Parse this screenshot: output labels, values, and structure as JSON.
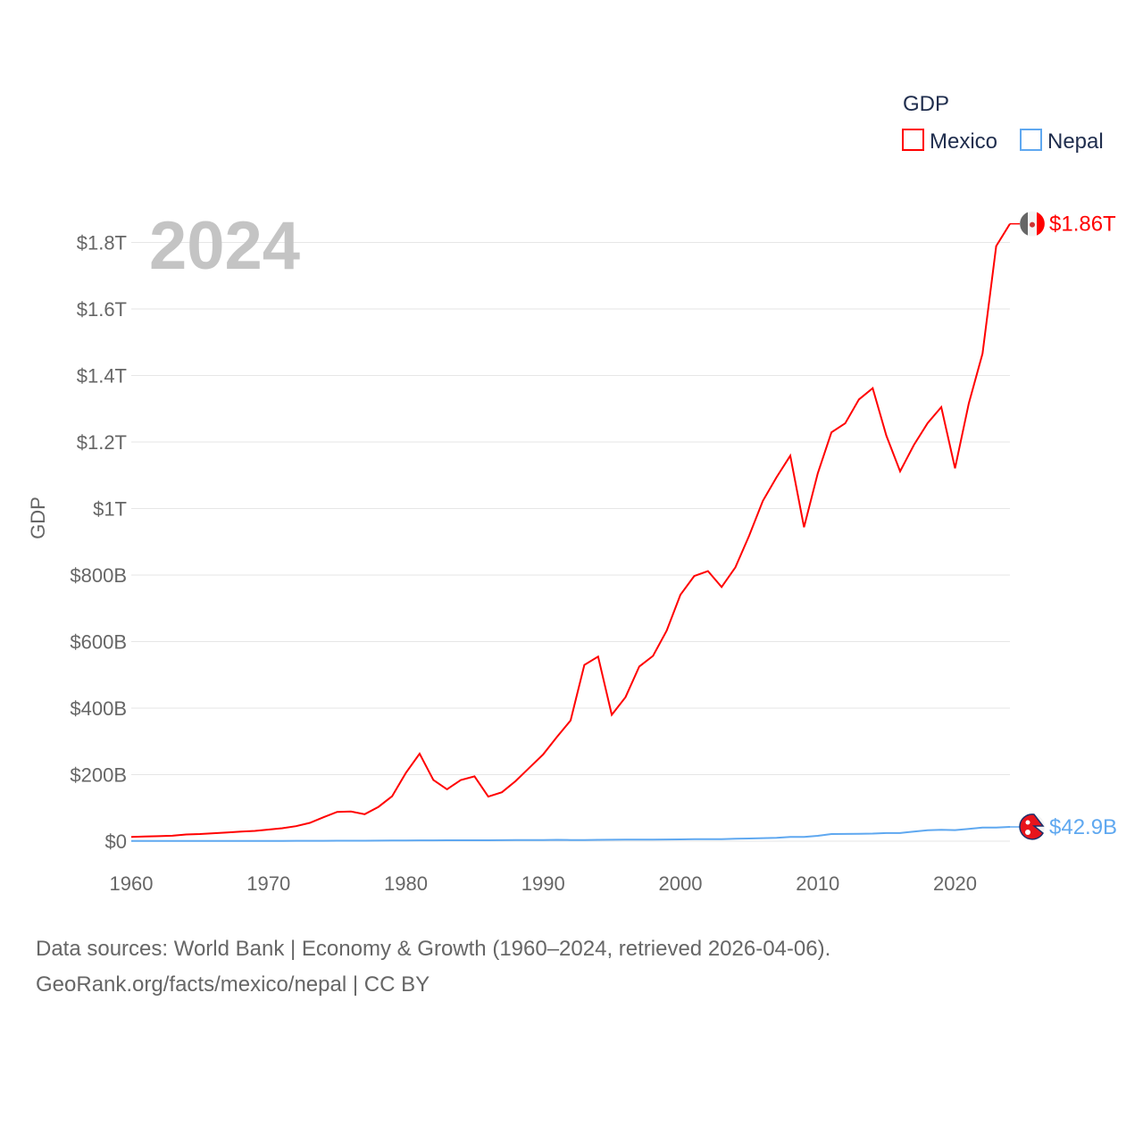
{
  "chart_data": {
    "type": "line",
    "title": "GDP",
    "ylabel": "GDP",
    "xlabel": "",
    "year_label": "2024",
    "legend_title": "GDP",
    "legend_position": "top-right",
    "grid": true,
    "xlim": [
      1960,
      2024
    ],
    "ylim": [
      0,
      1900
    ],
    "y_unit": "billion USD",
    "x_ticks": [
      1960,
      1970,
      1980,
      1990,
      2000,
      2010,
      2020
    ],
    "x_tick_labels": [
      "1960",
      "1970",
      "1980",
      "1990",
      "2000",
      "2010",
      "2020"
    ],
    "y_ticks": [
      0,
      200,
      400,
      600,
      800,
      1000,
      1200,
      1400,
      1600,
      1800
    ],
    "y_tick_labels": [
      "$0",
      "$200B",
      "$400B",
      "$600B",
      "$800B",
      "$1T",
      "$1.2T",
      "$1.4T",
      "$1.6T",
      "$1.8T"
    ],
    "x": [
      1960,
      1961,
      1962,
      1963,
      1964,
      1965,
      1966,
      1967,
      1968,
      1969,
      1970,
      1971,
      1972,
      1973,
      1974,
      1975,
      1976,
      1977,
      1978,
      1979,
      1980,
      1981,
      1982,
      1983,
      1984,
      1985,
      1986,
      1987,
      1988,
      1989,
      1990,
      1991,
      1992,
      1993,
      1994,
      1995,
      1996,
      1997,
      1998,
      1999,
      2000,
      2001,
      2002,
      2003,
      2004,
      2005,
      2006,
      2007,
      2008,
      2009,
      2010,
      2011,
      2012,
      2013,
      2014,
      2015,
      2016,
      2017,
      2018,
      2019,
      2020,
      2021,
      2022,
      2023,
      2024
    ],
    "series": [
      {
        "name": "Mexico",
        "color": "#ff0000",
        "end_label": "$1.86T",
        "flag": "mexico-flag",
        "values": [
          13,
          14,
          15,
          16.5,
          20,
          21.6,
          24,
          26,
          29,
          31,
          35,
          39,
          45,
          55,
          72,
          88,
          89,
          81,
          103,
          135,
          205,
          263,
          184,
          156,
          184,
          195,
          134,
          147,
          181,
          221,
          261,
          313,
          363,
          530,
          555,
          380,
          433,
          525,
          557,
          633,
          741,
          797,
          812,
          764,
          823,
          918,
          1023,
          1094,
          1159,
          944,
          1106,
          1229,
          1256,
          1328,
          1362,
          1219,
          1112,
          1191,
          1257,
          1305,
          1121,
          1316,
          1466,
          1789,
          1856
        ]
      },
      {
        "name": "Nepal",
        "color": "#5fa8f0",
        "end_label": "$42.9B",
        "flag": "nepal-flag",
        "values": [
          0.5,
          0.5,
          0.5,
          0.6,
          0.6,
          0.7,
          0.8,
          0.8,
          0.9,
          0.9,
          0.9,
          0.9,
          1.0,
          1.0,
          1.2,
          1.4,
          1.4,
          1.4,
          1.6,
          1.8,
          2.0,
          2.3,
          2.5,
          2.6,
          2.6,
          2.7,
          2.7,
          3.0,
          3.2,
          3.4,
          3.6,
          3.9,
          3.4,
          3.5,
          3.9,
          4.4,
          4.5,
          4.9,
          4.9,
          5.0,
          5.5,
          6.0,
          6.0,
          6.3,
          7.3,
          8.1,
          9.0,
          10.3,
          12.5,
          12.9,
          16.0,
          21.6,
          21.7,
          22.2,
          22.7,
          24.4,
          24.5,
          28.9,
          33.1,
          34.2,
          33.4,
          36.9,
          41.2,
          40.9,
          42.9
        ]
      }
    ]
  },
  "footer": {
    "line1": "Data sources: World Bank | Economy & Growth (1960–2024, retrieved 2026-04-06).",
    "line2": "GeoRank.org/facts/mexico/nepal | CC BY"
  }
}
